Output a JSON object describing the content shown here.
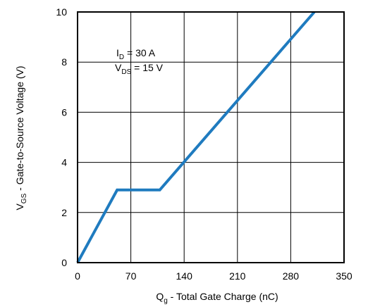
{
  "chart_data": {
    "type": "line",
    "xlabel": {
      "main": "Q",
      "sub": "g",
      "rest": " - Total Gate Charge (nC)"
    },
    "ylabel": {
      "main": "V",
      "sub": "GS",
      "rest": " - Gate-to-Source Voltage (V)"
    },
    "xlim": [
      0,
      350
    ],
    "ylim": [
      0,
      10
    ],
    "x_ticks": [
      0,
      70,
      140,
      210,
      280,
      350
    ],
    "y_ticks": [
      0,
      2,
      4,
      6,
      8,
      10
    ],
    "grid": true,
    "annotations": [
      {
        "main": "I",
        "sub": "D",
        "rest": " = 30 A"
      },
      {
        "main": "V",
        "sub": "DS",
        "rest": " = 15 V"
      }
    ],
    "series": [
      {
        "x": [
          0,
          52,
          108,
          311
        ],
        "y": [
          0,
          2.9,
          2.9,
          10
        ]
      }
    ],
    "line_color": "#1f7bbf"
  }
}
